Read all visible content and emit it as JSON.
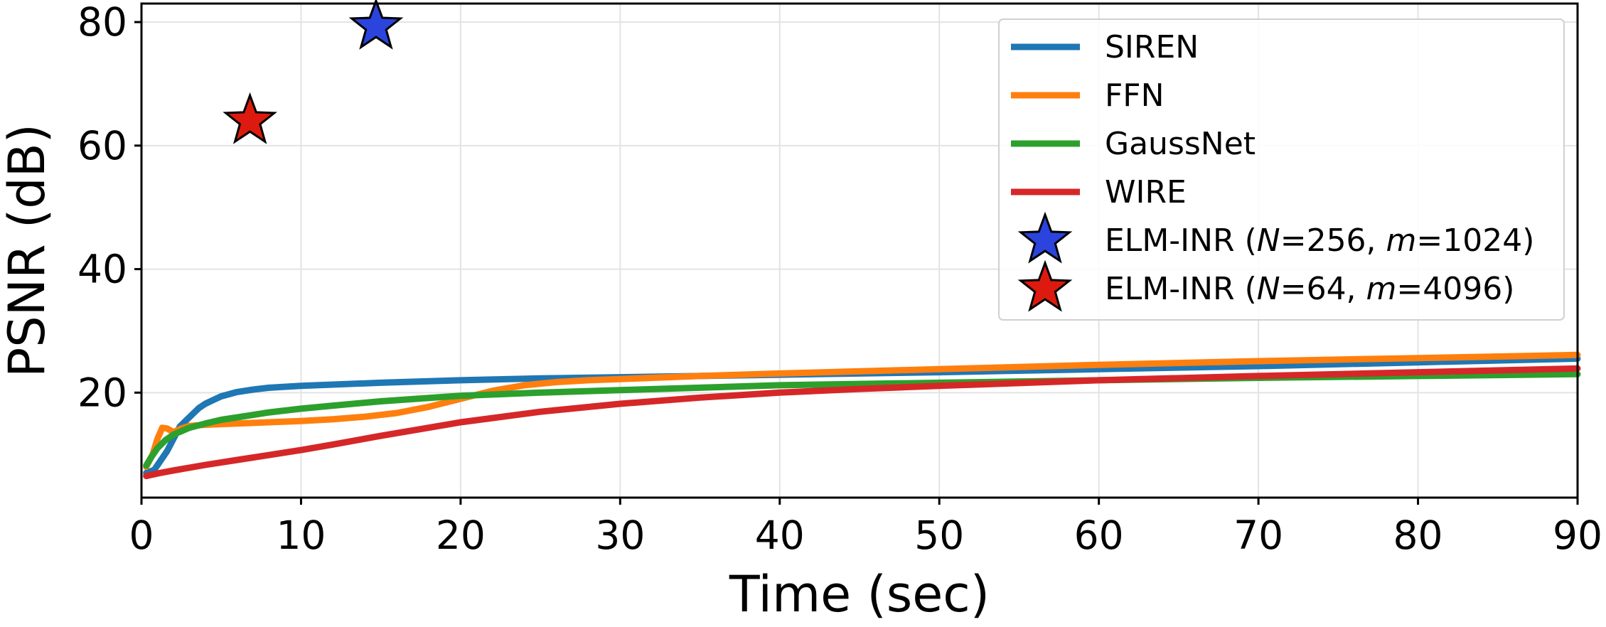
{
  "chart_data": {
    "type": "line",
    "xlabel": "Time (sec)",
    "ylabel": "PSNR (dB)",
    "xlim": [
      0,
      90
    ],
    "ylim": [
      3,
      83
    ],
    "xticks": [
      0,
      10,
      20,
      30,
      40,
      50,
      60,
      70,
      80,
      90
    ],
    "yticks": [
      20,
      40,
      60,
      80
    ],
    "grid": true,
    "legend_position": "top-right",
    "series": [
      {
        "name": "SIREN",
        "color": "#1f77b4",
        "x": [
          0.3,
          0.8,
          1.2,
          1.6,
          2.0,
          2.4,
          2.8,
          3.2,
          3.6,
          4.0,
          4.5,
          5.0,
          6.0,
          7.0,
          8.0,
          10,
          12,
          15,
          20,
          25,
          30,
          40,
          50,
          60,
          70,
          80,
          90
        ],
        "y": [
          7,
          7.5,
          9,
          10.5,
          12.5,
          14.5,
          15.5,
          16.5,
          17.5,
          18.2,
          18.8,
          19.4,
          20.1,
          20.5,
          20.8,
          21.1,
          21.3,
          21.6,
          22.0,
          22.3,
          22.5,
          22.9,
          23.3,
          23.8,
          24.3,
          24.9,
          25.5
        ]
      },
      {
        "name": "FFN",
        "color": "#ff7f0e",
        "x": [
          0.3,
          0.7,
          1.0,
          1.3,
          1.6,
          2.0,
          2.5,
          3.0,
          4.0,
          6.0,
          8.0,
          10,
          12,
          14,
          16,
          18,
          20,
          22,
          24,
          26,
          28,
          30,
          35,
          40,
          50,
          60,
          70,
          80,
          90
        ],
        "y": [
          8,
          10,
          12.5,
          14.3,
          14.2,
          13.6,
          14.2,
          14.6,
          14.8,
          15.0,
          15.2,
          15.4,
          15.7,
          16.1,
          16.7,
          17.7,
          19.0,
          20.3,
          21.2,
          21.7,
          22.0,
          22.2,
          22.7,
          23.1,
          23.8,
          24.5,
          25.1,
          25.6,
          26.1
        ]
      },
      {
        "name": "GaussNet",
        "color": "#2ca02c",
        "x": [
          0.3,
          0.6,
          1.0,
          1.5,
          2.0,
          3.0,
          4.0,
          5.0,
          6.0,
          8.0,
          10,
          12,
          15,
          20,
          25,
          30,
          40,
          50,
          60,
          70,
          80,
          90
        ],
        "y": [
          8.2,
          9.5,
          11,
          12.3,
          13.2,
          14.3,
          15.0,
          15.6,
          16.0,
          16.8,
          17.4,
          17.9,
          18.6,
          19.5,
          20.0,
          20.4,
          21.2,
          21.6,
          22.0,
          22.4,
          22.7,
          23.0
        ]
      },
      {
        "name": "WIRE",
        "color": "#d62728",
        "x": [
          0.3,
          1,
          2,
          4,
          6,
          8,
          10,
          12,
          15,
          20,
          25,
          30,
          35,
          40,
          45,
          50,
          60,
          70,
          80,
          90
        ],
        "y": [
          6.5,
          6.9,
          7.4,
          8.3,
          9.1,
          9.9,
          10.7,
          11.6,
          13.0,
          15.2,
          16.9,
          18.2,
          19.2,
          20.0,
          20.6,
          21.1,
          22.0,
          22.7,
          23.3,
          23.9
        ]
      }
    ],
    "markers": [
      {
        "name": "ELM-INR (N=256, m=1024)",
        "color": "#2a44dd",
        "x": 14.7,
        "y": 79.3
      },
      {
        "name": "ELM-INR (N=64, m=4096)",
        "color": "#dd1a0f",
        "x": 6.8,
        "y": 64.0
      }
    ]
  },
  "legend": {
    "items": [
      {
        "kind": "line",
        "color": "#1f77b4",
        "label": "SIREN"
      },
      {
        "kind": "line",
        "color": "#ff7f0e",
        "label": "FFN"
      },
      {
        "kind": "line",
        "color": "#2ca02c",
        "label": "GaussNet"
      },
      {
        "kind": "line",
        "color": "#d62728",
        "label": "WIRE"
      },
      {
        "kind": "star",
        "color": "#2a44dd",
        "prefix": "ELM-INR (",
        "N": "256",
        "m": "1024"
      },
      {
        "kind": "star",
        "color": "#dd1a0f",
        "prefix": "ELM-INR (",
        "N": "64",
        "m": "4096"
      }
    ]
  }
}
